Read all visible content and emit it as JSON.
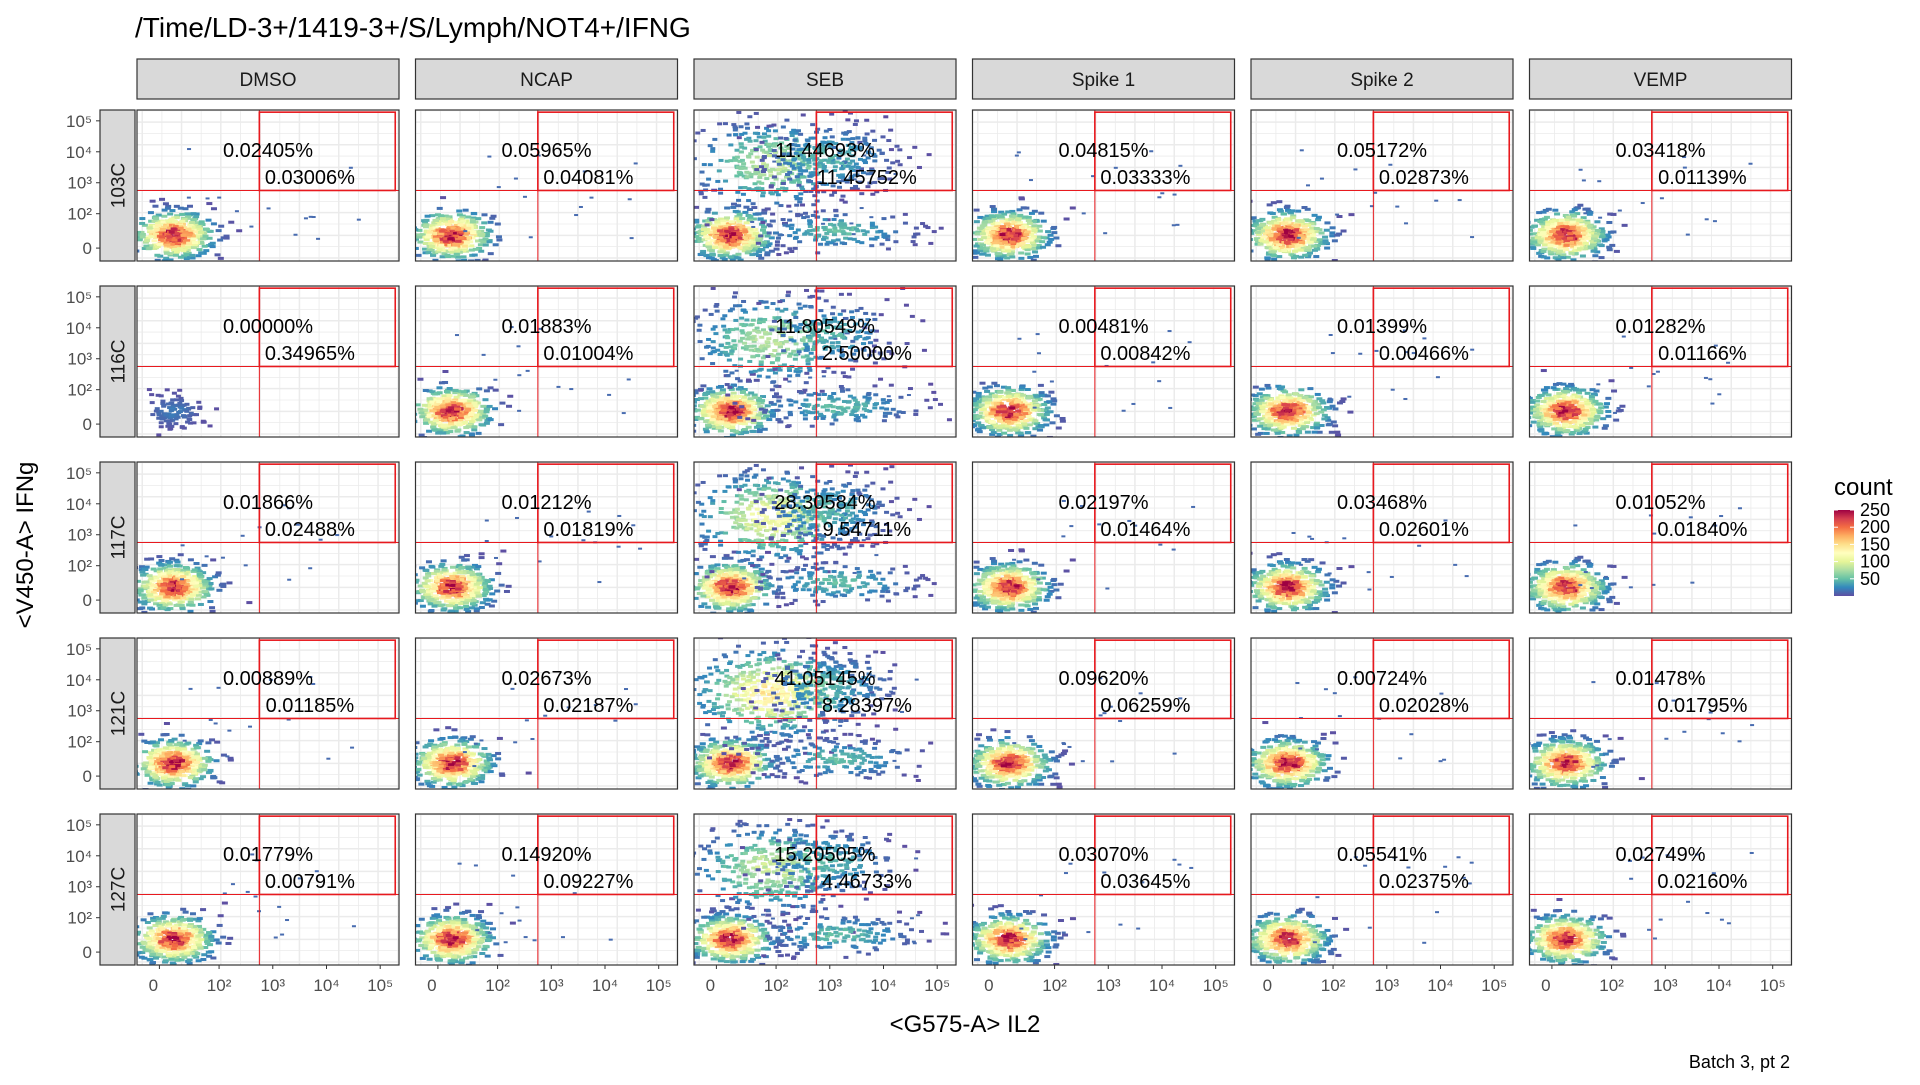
{
  "chart_data": {
    "type": "heatmap",
    "title": "/Time/LD-3+/1419-3+/S/Lymph/NOT4+/IFNG",
    "xlabel": "<G575-A> IL2",
    "ylabel": "<V450-A> IFNg",
    "caption": "Batch 3, pt 2",
    "x_ticks": [
      "0",
      "10²",
      "10³",
      "10⁴",
      "10⁵"
    ],
    "y_ticks": [
      "0",
      "10²",
      "10³",
      "10⁴",
      "10⁵"
    ],
    "columns": [
      "DMSO",
      "NCAP",
      "SEB",
      "Spike 1",
      "Spike 2",
      "VEMP"
    ],
    "rows": [
      "103C",
      "116C",
      "117C",
      "121C",
      "127C"
    ],
    "legend": {
      "title": "count",
      "labels": [
        "250",
        "200",
        "150",
        "100",
        "50"
      ],
      "max": 250,
      "colors": [
        "#9E0142",
        "#D53E4F",
        "#F46D43",
        "#FDAE61",
        "#FEE08B",
        "#FFFFBF",
        "#E6F598",
        "#ABDDA4",
        "#66C2A5",
        "#3288BD",
        "#5E4FA2"
      ]
    },
    "gate_color": "#E8191E",
    "percentages": [
      [
        [
          "0.02405%",
          "0.03006%"
        ],
        [
          "0.05965%",
          "0.04081%"
        ],
        [
          "11.44693%",
          "11.45752%"
        ],
        [
          "0.04815%",
          "0.03333%"
        ],
        [
          "0.05172%",
          "0.02873%"
        ],
        [
          "0.03418%",
          "0.01139%"
        ]
      ],
      [
        [
          "0.00000%",
          "0.34965%"
        ],
        [
          "0.01883%",
          "0.01004%"
        ],
        [
          "11.80549%",
          "2.50000%"
        ],
        [
          "0.00481%",
          "0.00842%"
        ],
        [
          "0.01399%",
          "0.00466%"
        ],
        [
          "0.01282%",
          "0.01166%"
        ]
      ],
      [
        [
          "0.01866%",
          "0.02488%"
        ],
        [
          "0.01212%",
          "0.01819%"
        ],
        [
          "28.30584%",
          "9.54711%"
        ],
        [
          "0.02197%",
          "0.01464%"
        ],
        [
          "0.03468%",
          "0.02601%"
        ],
        [
          "0.01052%",
          "0.01840%"
        ]
      ],
      [
        [
          "0.00889%",
          "0.01185%"
        ],
        [
          "0.02673%",
          "0.02187%"
        ],
        [
          "41.05145%",
          "8.28397%"
        ],
        [
          "0.09620%",
          "0.06259%"
        ],
        [
          "0.00724%",
          "0.02028%"
        ],
        [
          "0.01478%",
          "0.01795%"
        ]
      ],
      [
        [
          "0.01779%",
          "0.00791%"
        ],
        [
          "0.14920%",
          "0.09227%"
        ],
        [
          "15.20505%",
          "4.46733%"
        ],
        [
          "0.03070%",
          "0.03645%"
        ],
        [
          "0.05541%",
          "0.02375%"
        ],
        [
          "0.02749%",
          "0.02160%"
        ]
      ]
    ]
  }
}
